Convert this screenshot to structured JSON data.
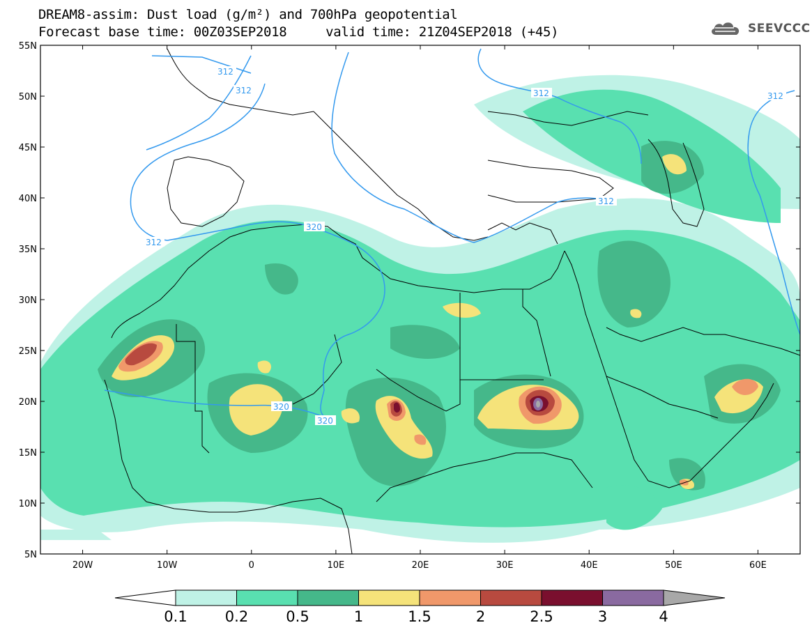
{
  "header": {
    "title_line1": "DREAM8-assim: Dust load (g/m²) and 700hPa geopotential",
    "title_line2": "Forecast base time: 00Z03SEP2018     valid time: 21Z04SEP2018 (+45)",
    "logo_text": "SEEVCCC"
  },
  "map": {
    "lat_ticks": [
      "55N",
      "50N",
      "45N",
      "40N",
      "35N",
      "30N",
      "25N",
      "20N",
      "15N",
      "10N",
      "5N"
    ],
    "lon_ticks": [
      "20W",
      "10W",
      "0",
      "10E",
      "20E",
      "30E",
      "40E",
      "50E",
      "60E"
    ],
    "lon_range": [
      -25,
      65
    ],
    "lat_range": [
      5,
      55
    ],
    "contour_labels": [
      "312",
      "312",
      "312",
      "312",
      "312",
      "312",
      "320",
      "320",
      "320"
    ]
  },
  "colorbar": {
    "levels": [
      "0.1",
      "0.2",
      "0.5",
      "1",
      "1.5",
      "2",
      "2.5",
      "3",
      "4"
    ],
    "colors": [
      "#bff2e6",
      "#59e0b0",
      "#45b88a",
      "#f5e37a",
      "#f0986a",
      "#b84a3f",
      "#7a0f2e",
      "#8a6aa0",
      "#a8a8a8"
    ]
  },
  "palette": {
    "contour": "#3399ee",
    "coast": "#000000"
  }
}
